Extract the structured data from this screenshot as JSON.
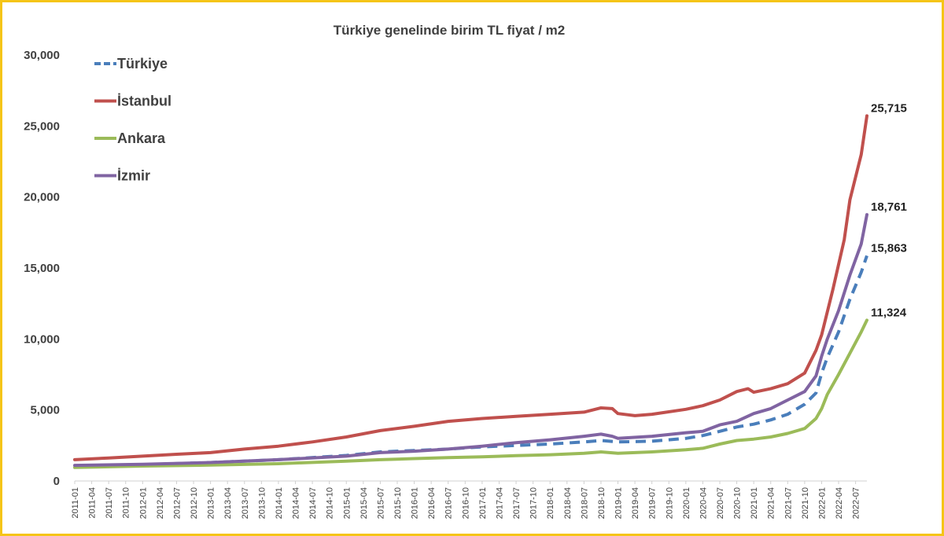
{
  "chart_data": {
    "type": "line",
    "title": "Türkiye genelinde birim TL fiyat / m2",
    "xlabel": "",
    "ylabel": "",
    "ylim": [
      0,
      30000
    ],
    "yticks": [
      0,
      5000,
      10000,
      15000,
      20000,
      25000,
      30000
    ],
    "ytick_labels": [
      "0",
      "5,000",
      "10,000",
      "15,000",
      "20,000",
      "25,000",
      "30,000"
    ],
    "xtick_labels": [
      "2011-01",
      "2011-04",
      "2011-07",
      "2011-10",
      "2012-01",
      "2012-04",
      "2012-07",
      "2012-10",
      "2013-01",
      "2013-04",
      "2013-07",
      "2013-10",
      "2014-01",
      "2014-04",
      "2014-07",
      "2014-10",
      "2015-01",
      "2015-04",
      "2015-07",
      "2015-10",
      "2016-01",
      "2016-04",
      "2016-07",
      "2016-10",
      "2017-01",
      "2017-04",
      "2017-07",
      "2017-10",
      "2018-01",
      "2018-04",
      "2018-07",
      "2018-10",
      "2019-01",
      "2019-04",
      "2019-07",
      "2019-10",
      "2020-01",
      "2020-04",
      "2020-07",
      "2020-10",
      "2021-01",
      "2021-04",
      "2021-07",
      "2021-10",
      "2022-01",
      "2022-04",
      "2022-07"
    ],
    "x_range": [
      "2011-01",
      "2022-09"
    ],
    "grid": false,
    "legend_position": "top-left",
    "series": [
      {
        "name": "Türkiye",
        "color": "#4a7ebb",
        "dash": true,
        "points": [
          [
            "2011-01",
            1000
          ],
          [
            "2012-01",
            1150
          ],
          [
            "2013-01",
            1300
          ],
          [
            "2014-01",
            1500
          ],
          [
            "2015-01",
            1800
          ],
          [
            "2015-07",
            2050
          ],
          [
            "2016-01",
            2150
          ],
          [
            "2016-07",
            2250
          ],
          [
            "2017-01",
            2400
          ],
          [
            "2017-07",
            2500
          ],
          [
            "2018-01",
            2600
          ],
          [
            "2018-07",
            2750
          ],
          [
            "2018-10",
            2850
          ],
          [
            "2019-01",
            2750
          ],
          [
            "2019-07",
            2800
          ],
          [
            "2020-01",
            3000
          ],
          [
            "2020-04",
            3200
          ],
          [
            "2020-07",
            3500
          ],
          [
            "2020-10",
            3800
          ],
          [
            "2021-01",
            4000
          ],
          [
            "2021-04",
            4300
          ],
          [
            "2021-07",
            4700
          ],
          [
            "2021-10",
            5400
          ],
          [
            "2021-12",
            6200
          ],
          [
            "2022-01",
            7600
          ],
          [
            "2022-02",
            8700
          ],
          [
            "2022-04",
            10500
          ],
          [
            "2022-06",
            12800
          ],
          [
            "2022-08",
            14700
          ],
          [
            "2022-09",
            15863
          ]
        ]
      },
      {
        "name": "İstanbul",
        "color": "#c0504d",
        "dash": false,
        "points": [
          [
            "2011-01",
            1500
          ],
          [
            "2011-07",
            1620
          ],
          [
            "2012-01",
            1750
          ],
          [
            "2012-07",
            1880
          ],
          [
            "2013-01",
            2000
          ],
          [
            "2013-07",
            2250
          ],
          [
            "2014-01",
            2450
          ],
          [
            "2014-07",
            2750
          ],
          [
            "2015-01",
            3100
          ],
          [
            "2015-07",
            3550
          ],
          [
            "2016-01",
            3850
          ],
          [
            "2016-07",
            4200
          ],
          [
            "2017-01",
            4400
          ],
          [
            "2017-07",
            4550
          ],
          [
            "2018-01",
            4700
          ],
          [
            "2018-07",
            4850
          ],
          [
            "2018-10",
            5150
          ],
          [
            "2018-12",
            5100
          ],
          [
            "2019-01",
            4750
          ],
          [
            "2019-04",
            4600
          ],
          [
            "2019-07",
            4700
          ],
          [
            "2020-01",
            5050
          ],
          [
            "2020-04",
            5300
          ],
          [
            "2020-07",
            5700
          ],
          [
            "2020-10",
            6300
          ],
          [
            "2020-12",
            6500
          ],
          [
            "2021-01",
            6250
          ],
          [
            "2021-04",
            6500
          ],
          [
            "2021-07",
            6850
          ],
          [
            "2021-10",
            7600
          ],
          [
            "2021-12",
            9200
          ],
          [
            "2022-01",
            10300
          ],
          [
            "2022-03",
            13500
          ],
          [
            "2022-05",
            17000
          ],
          [
            "2022-06",
            19800
          ],
          [
            "2022-08",
            23000
          ],
          [
            "2022-09",
            25715
          ]
        ]
      },
      {
        "name": "Ankara",
        "color": "#9bbb59",
        "dash": false,
        "points": [
          [
            "2011-01",
            950
          ],
          [
            "2012-01",
            1050
          ],
          [
            "2013-01",
            1120
          ],
          [
            "2014-01",
            1220
          ],
          [
            "2015-01",
            1400
          ],
          [
            "2015-07",
            1500
          ],
          [
            "2016-01",
            1580
          ],
          [
            "2016-07",
            1650
          ],
          [
            "2017-01",
            1700
          ],
          [
            "2017-07",
            1780
          ],
          [
            "2018-01",
            1850
          ],
          [
            "2018-07",
            1950
          ],
          [
            "2018-10",
            2050
          ],
          [
            "2019-01",
            1950
          ],
          [
            "2019-07",
            2050
          ],
          [
            "2020-01",
            2200
          ],
          [
            "2020-04",
            2300
          ],
          [
            "2020-07",
            2600
          ],
          [
            "2020-10",
            2850
          ],
          [
            "2021-01",
            2950
          ],
          [
            "2021-04",
            3100
          ],
          [
            "2021-07",
            3350
          ],
          [
            "2021-10",
            3700
          ],
          [
            "2021-12",
            4400
          ],
          [
            "2022-01",
            5100
          ],
          [
            "2022-02",
            6100
          ],
          [
            "2022-04",
            7500
          ],
          [
            "2022-06",
            9000
          ],
          [
            "2022-08",
            10500
          ],
          [
            "2022-09",
            11324
          ]
        ]
      },
      {
        "name": "İzmir",
        "color": "#8064a2",
        "dash": false,
        "points": [
          [
            "2011-01",
            1100
          ],
          [
            "2012-01",
            1180
          ],
          [
            "2013-01",
            1300
          ],
          [
            "2014-01",
            1500
          ],
          [
            "2015-01",
            1750
          ],
          [
            "2015-07",
            2000
          ],
          [
            "2016-01",
            2100
          ],
          [
            "2016-07",
            2250
          ],
          [
            "2017-01",
            2450
          ],
          [
            "2017-07",
            2700
          ],
          [
            "2018-01",
            2900
          ],
          [
            "2018-07",
            3150
          ],
          [
            "2018-10",
            3300
          ],
          [
            "2018-12",
            3150
          ],
          [
            "2019-01",
            3000
          ],
          [
            "2019-07",
            3150
          ],
          [
            "2020-01",
            3400
          ],
          [
            "2020-04",
            3500
          ],
          [
            "2020-07",
            3950
          ],
          [
            "2020-10",
            4200
          ],
          [
            "2021-01",
            4750
          ],
          [
            "2021-04",
            5100
          ],
          [
            "2021-07",
            5700
          ],
          [
            "2021-10",
            6300
          ],
          [
            "2021-12",
            7400
          ],
          [
            "2022-01",
            8800
          ],
          [
            "2022-02",
            10000
          ],
          [
            "2022-04",
            12000
          ],
          [
            "2022-06",
            14500
          ],
          [
            "2022-08",
            16700
          ],
          [
            "2022-09",
            18761
          ]
        ]
      }
    ],
    "end_labels": [
      "25,715",
      "18,761",
      "15,863",
      "11,324"
    ],
    "end_label_values": [
      25715,
      18761,
      15863,
      11324
    ]
  }
}
